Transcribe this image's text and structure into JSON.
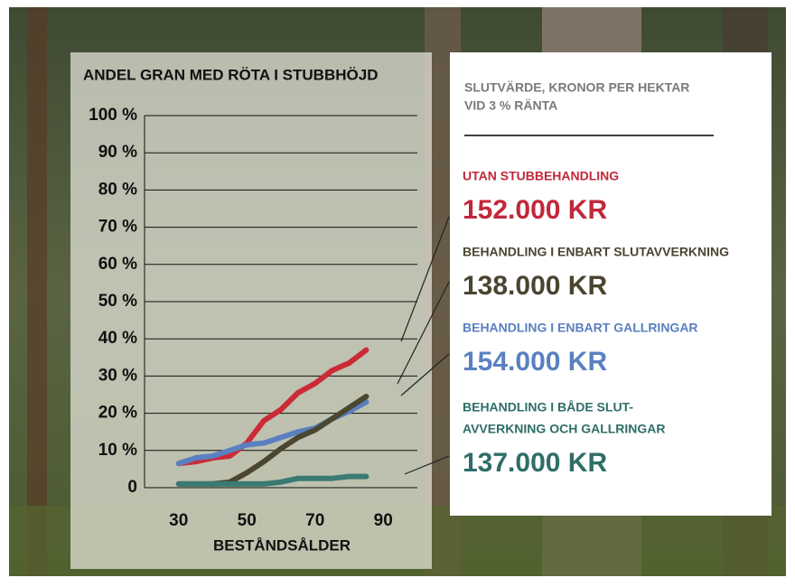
{
  "chart_data": {
    "type": "line",
    "title": "ANDEL GRAN MED RÖTA I STUBBHÖJD",
    "x_label": "BESTÅNDSÅLDER",
    "xlim": [
      20,
      100
    ],
    "xticks": [
      30,
      50,
      70,
      90
    ],
    "ylim": [
      0,
      100
    ],
    "yticks": [
      0,
      {
        "value": 10,
        "label": "10 %"
      },
      {
        "value": 20,
        "label": "20 %"
      },
      {
        "value": 30,
        "label": "30 %"
      },
      {
        "value": 40,
        "label": "40 %"
      },
      {
        "value": 50,
        "label": "50 %"
      },
      {
        "value": 60,
        "label": "60 %"
      },
      {
        "value": 70,
        "label": "70 %"
      },
      {
        "value": 80,
        "label": "80 %"
      },
      {
        "value": 90,
        "label": "90 %"
      },
      {
        "value": 100,
        "label": "100 %"
      }
    ],
    "grid": true,
    "x": [
      30,
      35,
      40,
      45,
      50,
      55,
      60,
      65,
      70,
      75,
      80,
      85
    ],
    "series": [
      {
        "color": "#cc2a36",
        "values": [
          6.5,
          7,
          8,
          8.5,
          12,
          18,
          21,
          25.5,
          28,
          31.5,
          33.5,
          37
        ]
      },
      {
        "color": "#5b7fc0",
        "values": [
          6.5,
          8,
          8.5,
          10,
          11.5,
          12,
          13.5,
          15,
          16,
          18.5,
          20.5,
          23
        ]
      },
      {
        "color": "#4a4630",
        "values": [
          1,
          1,
          1,
          1.5,
          4,
          7,
          10.5,
          13.5,
          15.5,
          18.5,
          21.5,
          24.5
        ]
      },
      {
        "color": "#3a7a72",
        "values": [
          1,
          1,
          1,
          1,
          1,
          1,
          1.5,
          2.5,
          2.5,
          2.5,
          3,
          3
        ]
      }
    ]
  },
  "panel": {
    "heading": [
      "SLUTVÄRDE, KRONOR PER HEKTAR",
      "VID 3 % RÄNTA"
    ],
    "items": [
      {
        "color": "#c0283a",
        "label": [
          "UTAN STUBBEHANDLING"
        ],
        "amount": "152.000 KR"
      },
      {
        "color": "#4a4530",
        "label": [
          "BEHANDLING I ENBART SLUTAVVERKNING"
        ],
        "amount": "138.000 KR"
      },
      {
        "color": "#5a80c0",
        "label": [
          "BEHANDLING I ENBART GALLRINGAR"
        ],
        "amount": "154.000 KR"
      },
      {
        "color": "#2f6e68",
        "label": [
          "BEHANDLING I BÅDE SLUT-",
          "AVVERKNING OCH GALLRINGAR"
        ],
        "amount": "137.000 KR"
      }
    ]
  }
}
